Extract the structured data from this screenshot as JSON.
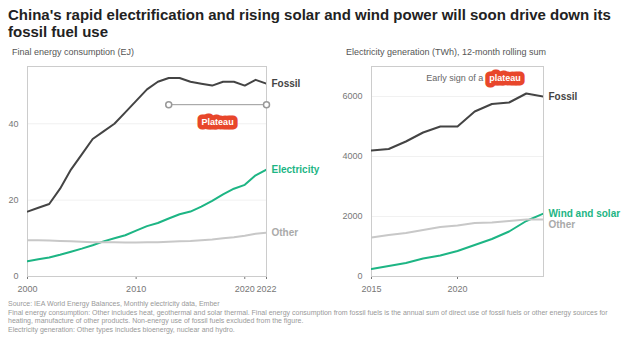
{
  "title": "China's rapid electrification and rising solar and wind power will soon drive down its fossil fuel use",
  "source_note": [
    "Source: IEA World Energy Balances, Monthly electricity data, Ember",
    "Final energy consumption: Other includes heat, geothermal and solar thermal. Final energy consumption from fossil fuels is the annual sum of direct use of fossil fuels or other energy sources for heating, manufacture of other products. Non-energy use of fossil fuels excluded from the figure.",
    "Electricity generation: Other types includes bioenergy, nuclear and hydro."
  ],
  "chart_data": [
    {
      "type": "line",
      "title": "Final energy consumption (EJ)",
      "x": [
        2000,
        2001,
        2002,
        2003,
        2004,
        2005,
        2006,
        2007,
        2008,
        2009,
        2010,
        2011,
        2012,
        2013,
        2014,
        2015,
        2016,
        2017,
        2018,
        2019,
        2020,
        2021,
        2022
      ],
      "xlim": [
        2000,
        2022
      ],
      "xticks": [
        2000,
        2010,
        2020,
        2022
      ],
      "ylim": [
        0,
        55
      ],
      "yticks": [
        0,
        20,
        40
      ],
      "grid": true,
      "series": [
        {
          "name": "Fossil",
          "color": "#444444",
          "values": [
            17,
            18,
            19,
            23,
            28,
            32,
            36,
            38,
            40,
            43,
            46,
            49,
            51,
            52,
            52,
            51,
            50.5,
            50,
            51,
            51,
            50,
            51.5,
            50.5
          ]
        },
        {
          "name": "Electricity",
          "color": "#1db584",
          "values": [
            4,
            4.5,
            5,
            5.7,
            6.5,
            7.3,
            8.2,
            9.2,
            10,
            10.8,
            12,
            13.2,
            14,
            15.2,
            16.3,
            17,
            18.3,
            19.8,
            21.5,
            23,
            24,
            26.5,
            28
          ]
        },
        {
          "name": "Other",
          "color": "#c8c8c8",
          "values": [
            9.5,
            9.5,
            9.4,
            9.3,
            9.2,
            9.1,
            9,
            9,
            9,
            8.9,
            8.9,
            9,
            9,
            9.1,
            9.2,
            9.3,
            9.5,
            9.7,
            10,
            10.3,
            10.7,
            11.2,
            11.5
          ]
        }
      ],
      "bracket": {
        "x1": 2013,
        "x2": 2022,
        "y": 45
      },
      "annotations": [
        {
          "highlight": "Plateau",
          "x": 2017.5,
          "y": 40.5
        }
      ]
    },
    {
      "type": "line",
      "title": "Electricity generation (TWh), 12-month rolling sum",
      "x": [
        2015,
        2016,
        2017,
        2018,
        2019,
        2020,
        2021,
        2022,
        2023,
        2024,
        2025
      ],
      "xlim": [
        2015,
        2025
      ],
      "xticks": [
        2015,
        2020
      ],
      "ylim": [
        0,
        7000
      ],
      "yticks": [
        0,
        2000,
        4000,
        6000
      ],
      "grid": true,
      "series": [
        {
          "name": "Fossil",
          "color": "#444444",
          "values": [
            4200,
            4250,
            4500,
            4800,
            5000,
            5000,
            5500,
            5750,
            5800,
            6100,
            6000
          ]
        },
        {
          "name": "Wind and solar",
          "color": "#1db584",
          "values": [
            250,
            350,
            450,
            600,
            700,
            850,
            1050,
            1250,
            1500,
            1850,
            2100
          ]
        },
        {
          "name": "Other",
          "color": "#c8c8c8",
          "values": [
            1300,
            1380,
            1450,
            1550,
            1650,
            1700,
            1780,
            1800,
            1850,
            1900,
            1900
          ]
        }
      ],
      "annotations": [
        {
          "text": "Early sign of a",
          "highlight": "plateau",
          "x": 2021.5,
          "y": 6600
        }
      ]
    }
  ]
}
